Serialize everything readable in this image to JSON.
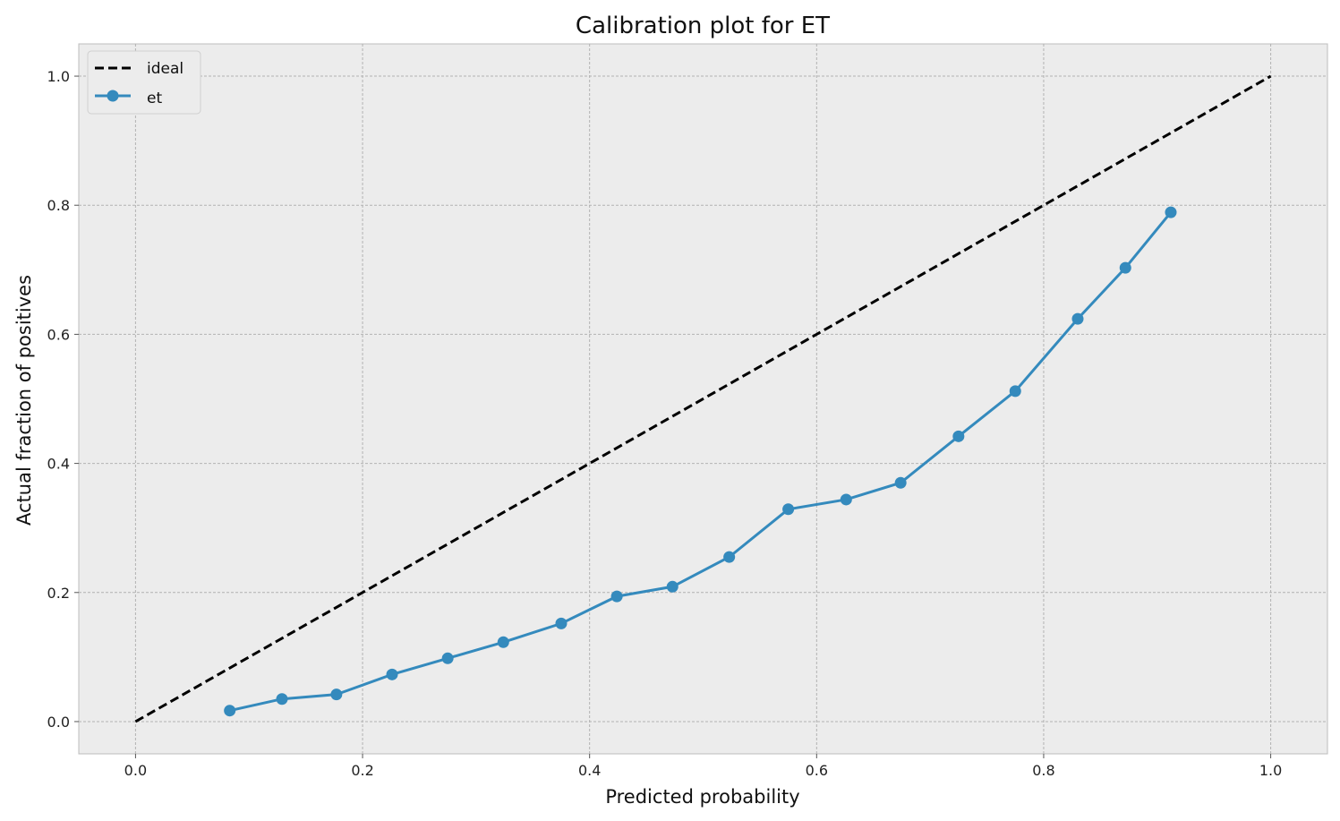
{
  "chart_data": {
    "type": "line",
    "title": "Calibration plot for ET",
    "xlabel": "Predicted probability",
    "ylabel": "Actual fraction of positives",
    "xlim": [
      -0.05,
      1.05
    ],
    "ylim": [
      -0.05,
      1.05
    ],
    "xticks": [
      "0.0",
      "0.2",
      "0.4",
      "0.6",
      "0.8",
      "1.0"
    ],
    "yticks": [
      "0.0",
      "0.2",
      "0.4",
      "0.6",
      "0.8",
      "1.0"
    ],
    "grid": true,
    "legend_position": "upper left",
    "series": [
      {
        "name": "ideal",
        "style": "dashed",
        "color": "#000000",
        "x": [
          0.0,
          1.0
        ],
        "y": [
          0.0,
          1.0
        ]
      },
      {
        "name": "et",
        "style": "solid-markers",
        "color": "#348abd",
        "x": [
          0.083,
          0.129,
          0.177,
          0.226,
          0.275,
          0.324,
          0.375,
          0.424,
          0.473,
          0.523,
          0.575,
          0.626,
          0.674,
          0.725,
          0.775,
          0.83,
          0.872,
          0.912
        ],
        "y": [
          0.017,
          0.035,
          0.042,
          0.073,
          0.098,
          0.123,
          0.152,
          0.194,
          0.209,
          0.255,
          0.329,
          0.344,
          0.37,
          0.442,
          0.512,
          0.624,
          0.703,
          0.789
        ]
      }
    ]
  }
}
